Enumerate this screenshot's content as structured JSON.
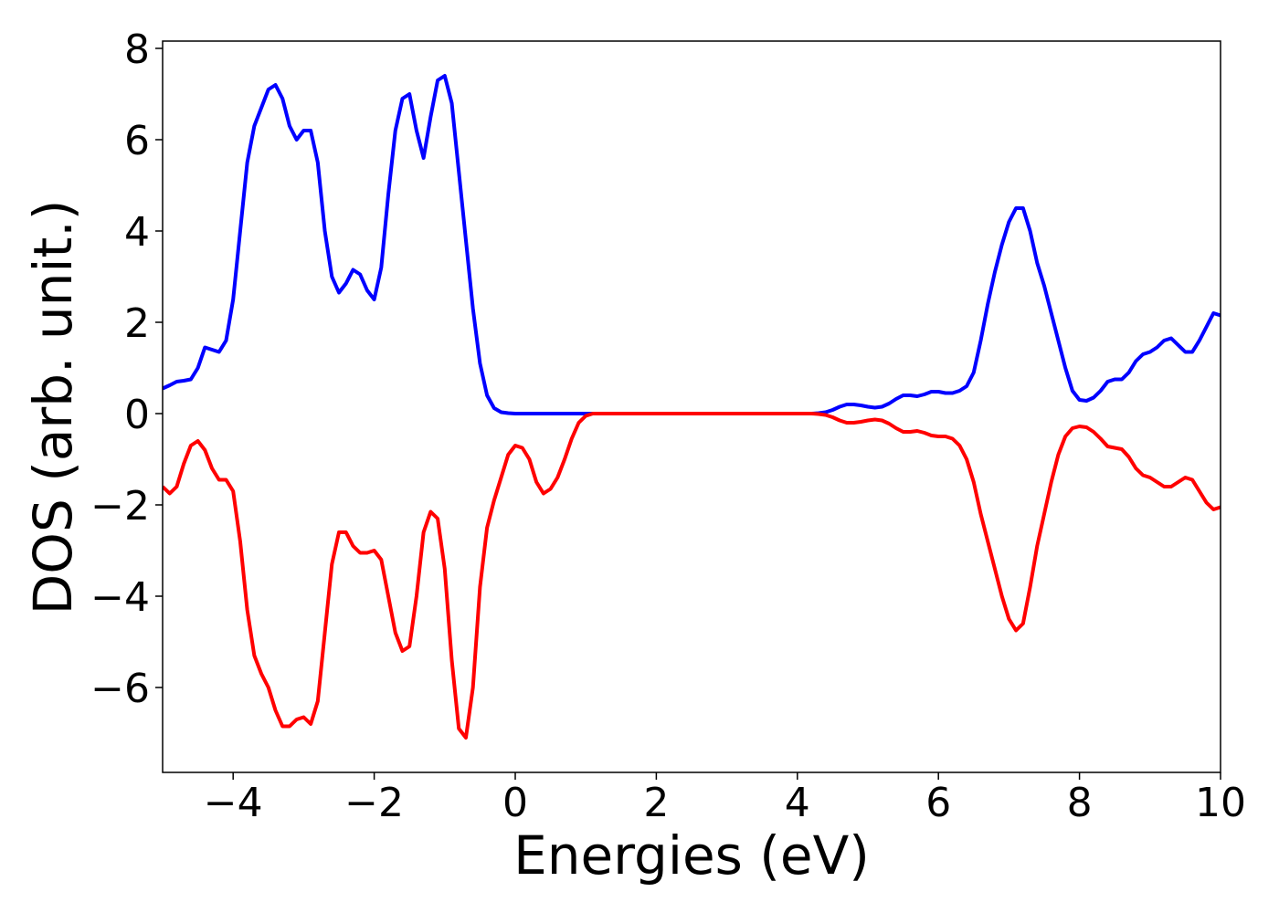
{
  "chart_data": {
    "type": "line",
    "xlabel": "Energies (eV)",
    "ylabel": "DOS (arb. unit.)",
    "x": [
      -5,
      -4.9,
      -4.8,
      -4.7,
      -4.6,
      -4.5,
      -4.4,
      -4.3,
      -4.2,
      -4.1,
      -4,
      -3.9,
      -3.8,
      -3.7,
      -3.6,
      -3.5,
      -3.4,
      -3.3,
      -3.2,
      -3.1,
      -3,
      -2.9,
      -2.8,
      -2.7,
      -2.6,
      -2.5,
      -2.4,
      -2.3,
      -2.2,
      -2.1,
      -2,
      -1.9,
      -1.8,
      -1.7,
      -1.6,
      -1.5,
      -1.4,
      -1.3,
      -1.2,
      -1.1,
      -1,
      -0.9,
      -0.8,
      -0.7,
      -0.6,
      -0.5,
      -0.4,
      -0.3,
      -0.2,
      -0.1,
      0,
      0.1,
      0.2,
      0.3,
      0.4,
      0.5,
      0.6,
      0.7,
      0.8,
      0.9,
      1,
      1.1,
      1.2,
      1.3,
      1.4,
      1.5,
      1.6,
      1.7,
      1.8,
      1.9,
      2,
      2.1,
      2.2,
      2.3,
      2.4,
      2.5,
      2.6,
      2.7,
      2.8,
      2.9,
      3,
      3.1,
      3.2,
      3.3,
      3.4,
      3.5,
      3.6,
      3.7,
      3.8,
      3.9,
      4,
      4.1,
      4.2,
      4.3,
      4.4,
      4.5,
      4.6,
      4.7,
      4.8,
      4.9,
      5,
      5.1,
      5.2,
      5.3,
      5.4,
      5.5,
      5.6,
      5.7,
      5.8,
      5.9,
      6,
      6.1,
      6.2,
      6.3,
      6.4,
      6.5,
      6.6,
      6.7,
      6.8,
      6.9,
      7,
      7.1,
      7.2,
      7.3,
      7.4,
      7.5,
      7.6,
      7.7,
      7.8,
      7.9,
      8,
      8.1,
      8.2,
      8.3,
      8.4,
      8.5,
      8.6,
      8.7,
      8.8,
      8.9,
      9,
      9.1,
      9.2,
      9.3,
      9.4,
      9.5,
      9.6,
      9.7,
      9.8,
      9.9,
      10
    ],
    "series": [
      {
        "color": "#0000ff",
        "values": [
          0.55,
          0.62,
          0.7,
          0.72,
          0.75,
          1.0,
          1.45,
          1.4,
          1.35,
          1.6,
          2.5,
          4.0,
          5.5,
          6.3,
          6.7,
          7.1,
          7.2,
          6.9,
          6.3,
          6.0,
          6.2,
          6.2,
          5.5,
          4.0,
          3.0,
          2.65,
          2.85,
          3.15,
          3.05,
          2.7,
          2.5,
          3.2,
          4.8,
          6.2,
          6.9,
          7.0,
          6.2,
          5.6,
          6.5,
          7.3,
          7.4,
          6.8,
          5.3,
          3.8,
          2.3,
          1.1,
          0.4,
          0.12,
          0.03,
          0.01,
          0,
          0,
          0,
          0,
          0,
          0,
          0,
          0,
          0,
          0,
          0,
          0,
          0,
          0,
          0,
          0,
          0,
          0,
          0,
          0,
          0,
          0,
          0,
          0,
          0,
          0,
          0,
          0,
          0,
          0,
          0,
          0,
          0,
          0,
          0,
          0,
          0,
          0,
          0,
          0,
          0,
          0,
          0,
          0.01,
          0.03,
          0.08,
          0.15,
          0.2,
          0.2,
          0.18,
          0.15,
          0.13,
          0.15,
          0.22,
          0.32,
          0.4,
          0.4,
          0.38,
          0.42,
          0.48,
          0.48,
          0.45,
          0.45,
          0.5,
          0.6,
          0.9,
          1.6,
          2.4,
          3.1,
          3.7,
          4.2,
          4.5,
          4.5,
          4.0,
          3.3,
          2.8,
          2.2,
          1.6,
          1.0,
          0.5,
          0.3,
          0.28,
          0.35,
          0.5,
          0.7,
          0.75,
          0.75,
          0.9,
          1.15,
          1.3,
          1.35,
          1.45,
          1.6,
          1.65,
          1.5,
          1.35,
          1.35,
          1.6,
          1.9,
          2.2,
          2.15
        ]
      },
      {
        "color": "#ff0000",
        "values": [
          -1.6,
          -1.75,
          -1.6,
          -1.1,
          -0.7,
          -0.6,
          -0.8,
          -1.2,
          -1.45,
          -1.45,
          -1.7,
          -2.8,
          -4.3,
          -5.3,
          -5.7,
          -6.0,
          -6.5,
          -6.85,
          -6.85,
          -6.7,
          -6.65,
          -6.8,
          -6.3,
          -4.8,
          -3.3,
          -2.6,
          -2.6,
          -2.9,
          -3.05,
          -3.05,
          -3.0,
          -3.2,
          -4.0,
          -4.8,
          -5.2,
          -5.1,
          -4.0,
          -2.6,
          -2.15,
          -2.3,
          -3.4,
          -5.4,
          -6.9,
          -7.1,
          -6.0,
          -3.8,
          -2.5,
          -1.9,
          -1.4,
          -0.9,
          -0.7,
          -0.75,
          -1.0,
          -1.5,
          -1.75,
          -1.65,
          -1.4,
          -1.0,
          -0.55,
          -0.2,
          -0.05,
          0,
          0,
          0,
          0,
          0,
          0,
          0,
          0,
          0,
          0,
          0,
          0,
          0,
          0,
          0,
          0,
          0,
          0,
          0,
          0,
          0,
          0,
          0,
          0,
          0,
          0,
          0,
          0,
          0,
          0,
          0,
          0,
          -0.01,
          -0.03,
          -0.08,
          -0.15,
          -0.2,
          -0.2,
          -0.18,
          -0.15,
          -0.13,
          -0.15,
          -0.22,
          -0.32,
          -0.4,
          -0.4,
          -0.38,
          -0.42,
          -0.48,
          -0.5,
          -0.5,
          -0.55,
          -0.7,
          -1.0,
          -1.5,
          -2.2,
          -2.8,
          -3.4,
          -4.0,
          -4.5,
          -4.75,
          -4.6,
          -3.8,
          -2.9,
          -2.2,
          -1.5,
          -0.9,
          -0.5,
          -0.32,
          -0.28,
          -0.3,
          -0.4,
          -0.55,
          -0.72,
          -0.75,
          -0.78,
          -0.95,
          -1.2,
          -1.35,
          -1.4,
          -1.5,
          -1.6,
          -1.6,
          -1.5,
          -1.4,
          -1.45,
          -1.7,
          -1.95,
          -2.1,
          -2.05
        ]
      }
    ],
    "xlim": [
      -5,
      10
    ],
    "xticks": [
      {
        "value": -4,
        "label": "−4"
      },
      {
        "value": -2,
        "label": "−2"
      },
      0,
      2,
      4,
      6,
      8,
      10
    ],
    "ylim": [
      -7.86,
      8.16
    ],
    "yticks": [
      {
        "value": -6,
        "label": "−6"
      },
      {
        "value": -4,
        "label": "−4"
      },
      {
        "value": -2,
        "label": "−2"
      },
      0,
      2,
      4,
      6,
      8
    ]
  }
}
